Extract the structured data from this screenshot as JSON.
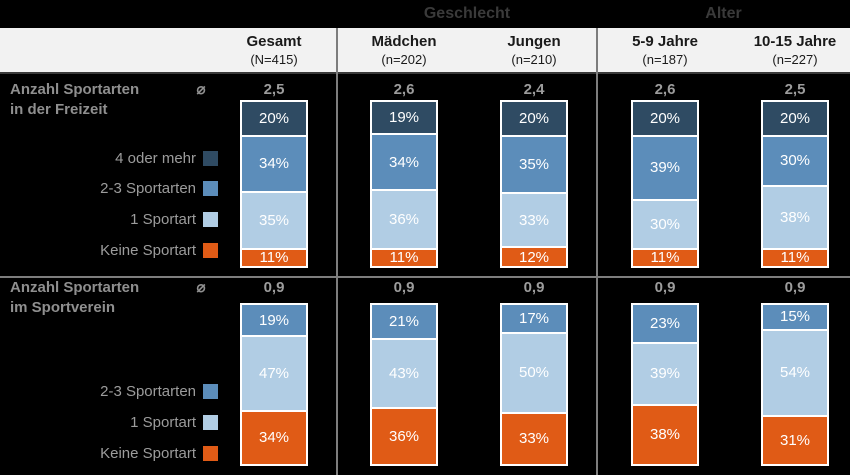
{
  "page": {
    "background": "#000000",
    "header_bg": "#F2F2F2",
    "header_groups": {
      "geschlecht": "Geschlecht",
      "alter": "Alter"
    }
  },
  "columns": [
    {
      "label": "Gesamt",
      "n": "(N=415)"
    },
    {
      "label": "Mädchen",
      "n": "(n=202)"
    },
    {
      "label": "Jungen",
      "n": "(n=210)"
    },
    {
      "label": "5-9 Jahre",
      "n": "(n=187)"
    },
    {
      "label": "10-15 Jahre",
      "n": "(n=227)"
    }
  ],
  "chart_data": [
    {
      "type": "bar",
      "stacked": true,
      "stack_order": "top-to-bottom",
      "title_lines": [
        "Anzahl Sportarten",
        "in der Freizeit"
      ],
      "avg_symbol": "⌀",
      "categories": [
        "Gesamt (N=415)",
        "Mädchen (n=202)",
        "Jungen (n=210)",
        "5-9 Jahre (n=187)",
        "10-15 Jahre (n=227)"
      ],
      "averages": [
        "2,5",
        "2,6",
        "2,4",
        "2,6",
        "2,5"
      ],
      "value_suffix": "%",
      "ylim": [
        0,
        100
      ],
      "series": [
        {
          "name": "4 oder mehr",
          "color": "#2F4B63",
          "values": [
            20,
            19,
            20,
            20,
            20
          ]
        },
        {
          "name": "2-3 Sportarten",
          "color": "#5C8DBA",
          "values": [
            34,
            34,
            35,
            39,
            30
          ]
        },
        {
          "name": "1 Sportart",
          "color": "#B1CDE4",
          "values": [
            35,
            36,
            33,
            30,
            38
          ]
        },
        {
          "name": "Keine Sportart",
          "color": "#E05B16",
          "values": [
            11,
            11,
            12,
            11,
            11
          ]
        }
      ]
    },
    {
      "type": "bar",
      "stacked": true,
      "stack_order": "top-to-bottom",
      "title_lines": [
        "Anzahl Sportarten",
        "im Sportverein"
      ],
      "avg_symbol": "⌀",
      "categories": [
        "Gesamt (N=415)",
        "Mädchen (n=202)",
        "Jungen (n=210)",
        "5-9 Jahre (n=187)",
        "10-15 Jahre (n=227)"
      ],
      "averages": [
        "0,9",
        "0,9",
        "0,9",
        "0,9",
        "0,9"
      ],
      "value_suffix": "%",
      "ylim": [
        0,
        100
      ],
      "series": [
        {
          "name": "2-3 Sportarten",
          "color": "#5C8DBA",
          "values": [
            19,
            21,
            17,
            23,
            15
          ]
        },
        {
          "name": "1 Sportart",
          "color": "#B1CDE4",
          "values": [
            47,
            43,
            50,
            39,
            54
          ]
        },
        {
          "name": "Keine Sportart",
          "color": "#E05B16",
          "values": [
            34,
            36,
            33,
            38,
            31
          ]
        }
      ]
    }
  ]
}
